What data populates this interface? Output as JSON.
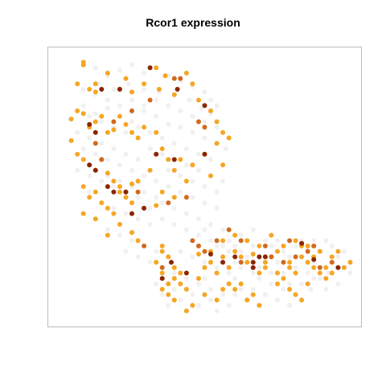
{
  "chart_data": {
    "type": "scatter",
    "title": "Rcor1 expression",
    "xlabel": "",
    "ylabel": "",
    "xlim": [
      0,
      100
    ],
    "ylim": [
      0,
      100
    ],
    "axes_visible": false,
    "grid": false,
    "legend": "none",
    "colors": {
      "background": "#eeeeee",
      "low": "#f5a623",
      "mid": "#d2691e",
      "high": "#8b2500",
      "frame": "#bbbbbb"
    },
    "background_points": [
      [
        14,
        94
      ],
      [
        18,
        91
      ],
      [
        22,
        93
      ],
      [
        26,
        95
      ],
      [
        30,
        92
      ],
      [
        34,
        94
      ],
      [
        38,
        91
      ],
      [
        42,
        89
      ],
      [
        46,
        87
      ],
      [
        50,
        85
      ],
      [
        52,
        82
      ],
      [
        54,
        80
      ],
      [
        15,
        88
      ],
      [
        20,
        86
      ],
      [
        25,
        88
      ],
      [
        30,
        86
      ],
      [
        35,
        85
      ],
      [
        40,
        84
      ],
      [
        45,
        82
      ],
      [
        49,
        79
      ],
      [
        52,
        77
      ],
      [
        10,
        80
      ],
      [
        14,
        77
      ],
      [
        18,
        79
      ],
      [
        22,
        76
      ],
      [
        26,
        74
      ],
      [
        30,
        78
      ],
      [
        34,
        76
      ],
      [
        38,
        73
      ],
      [
        42,
        72
      ],
      [
        46,
        70
      ],
      [
        50,
        68
      ],
      [
        54,
        66
      ],
      [
        57,
        64
      ],
      [
        8,
        70
      ],
      [
        12,
        68
      ],
      [
        16,
        66
      ],
      [
        20,
        64
      ],
      [
        24,
        62
      ],
      [
        28,
        60
      ],
      [
        32,
        64
      ],
      [
        36,
        62
      ],
      [
        40,
        60
      ],
      [
        44,
        58
      ],
      [
        48,
        56
      ],
      [
        52,
        54
      ],
      [
        56,
        52
      ],
      [
        10,
        60
      ],
      [
        14,
        56
      ],
      [
        18,
        54
      ],
      [
        22,
        52
      ],
      [
        26,
        50
      ],
      [
        30,
        48
      ],
      [
        34,
        46
      ],
      [
        38,
        50
      ],
      [
        42,
        48
      ],
      [
        46,
        46
      ],
      [
        50,
        44
      ],
      [
        54,
        42
      ],
      [
        12,
        48
      ],
      [
        16,
        44
      ],
      [
        20,
        42
      ],
      [
        24,
        40
      ],
      [
        28,
        38
      ],
      [
        32,
        36
      ],
      [
        36,
        38
      ],
      [
        40,
        36
      ],
      [
        44,
        34
      ],
      [
        48,
        32
      ],
      [
        52,
        30
      ],
      [
        56,
        28
      ],
      [
        18,
        34
      ],
      [
        22,
        32
      ],
      [
        26,
        30
      ],
      [
        30,
        28
      ],
      [
        34,
        26
      ],
      [
        38,
        24
      ],
      [
        42,
        26
      ],
      [
        46,
        24
      ],
      [
        50,
        22
      ],
      [
        54,
        20
      ],
      [
        58,
        18
      ],
      [
        24,
        26
      ],
      [
        28,
        24
      ],
      [
        32,
        22
      ],
      [
        36,
        20
      ],
      [
        40,
        18
      ],
      [
        44,
        16
      ],
      [
        48,
        14
      ],
      [
        52,
        12
      ],
      [
        56,
        10
      ],
      [
        60,
        16
      ],
      [
        62,
        20
      ],
      [
        64,
        24
      ],
      [
        34,
        14
      ],
      [
        36,
        10
      ],
      [
        38,
        6
      ],
      [
        40,
        12
      ],
      [
        42,
        8
      ],
      [
        44,
        4
      ],
      [
        46,
        10
      ],
      [
        48,
        6
      ],
      [
        50,
        16
      ],
      [
        52,
        8
      ],
      [
        54,
        4
      ],
      [
        58,
        6
      ],
      [
        60,
        28
      ],
      [
        62,
        26
      ],
      [
        64,
        22
      ],
      [
        66,
        18
      ],
      [
        68,
        20
      ],
      [
        70,
        24
      ],
      [
        72,
        28
      ],
      [
        74,
        22
      ],
      [
        76,
        18
      ],
      [
        78,
        14
      ],
      [
        80,
        20
      ],
      [
        60,
        10
      ],
      [
        62,
        12
      ],
      [
        64,
        8
      ],
      [
        66,
        12
      ],
      [
        68,
        6
      ],
      [
        70,
        10
      ],
      [
        72,
        14
      ],
      [
        74,
        8
      ],
      [
        76,
        12
      ],
      [
        78,
        6
      ],
      [
        80,
        10
      ],
      [
        82,
        14
      ],
      [
        84,
        18
      ],
      [
        86,
        22
      ],
      [
        88,
        26
      ],
      [
        90,
        30
      ],
      [
        92,
        28
      ],
      [
        94,
        24
      ],
      [
        96,
        20
      ],
      [
        98,
        22
      ],
      [
        85,
        12
      ],
      [
        88,
        16
      ],
      [
        91,
        18
      ],
      [
        94,
        14
      ],
      [
        96,
        26
      ],
      [
        98,
        18
      ],
      [
        82,
        24
      ],
      [
        84,
        28
      ],
      [
        86,
        30
      ],
      [
        70,
        30
      ],
      [
        66,
        28
      ],
      [
        62,
        32
      ],
      [
        58,
        26
      ],
      [
        56,
        24
      ],
      [
        54,
        28
      ],
      [
        66,
        34
      ],
      [
        68,
        16
      ],
      [
        72,
        18
      ],
      [
        74,
        30
      ],
      [
        76,
        26
      ],
      [
        78,
        24
      ],
      [
        80,
        28
      ],
      [
        82,
        30
      ],
      [
        86,
        16
      ],
      [
        90,
        12
      ],
      [
        92,
        22
      ],
      [
        64,
        30
      ],
      [
        60,
        22
      ],
      [
        58,
        30
      ],
      [
        56,
        34
      ],
      [
        52,
        36
      ],
      [
        50,
        34
      ],
      [
        48,
        38
      ],
      [
        44,
        40
      ],
      [
        40,
        42
      ],
      [
        36,
        44
      ],
      [
        32,
        42
      ],
      [
        28,
        46
      ],
      [
        24,
        48
      ],
      [
        20,
        50
      ],
      [
        16,
        52
      ],
      [
        12,
        54
      ],
      [
        8,
        56
      ],
      [
        10,
        64
      ],
      [
        14,
        62
      ],
      [
        18,
        60
      ],
      [
        22,
        58
      ],
      [
        26,
        56
      ],
      [
        30,
        54
      ],
      [
        34,
        52
      ],
      [
        38,
        56
      ],
      [
        42,
        54
      ],
      [
        46,
        52
      ],
      [
        50,
        50
      ],
      [
        54,
        48
      ],
      [
        44,
        64
      ],
      [
        48,
        62
      ],
      [
        52,
        60
      ],
      [
        56,
        58
      ],
      [
        40,
        66
      ],
      [
        36,
        68
      ],
      [
        32,
        70
      ],
      [
        28,
        72
      ],
      [
        24,
        70
      ],
      [
        20,
        72
      ],
      [
        16,
        74
      ],
      [
        12,
        76
      ],
      [
        8,
        78
      ],
      [
        10,
        86
      ],
      [
        14,
        84
      ],
      [
        18,
        82
      ],
      [
        22,
        80
      ],
      [
        26,
        82
      ],
      [
        30,
        80
      ],
      [
        34,
        82
      ],
      [
        38,
        80
      ],
      [
        42,
        78
      ],
      [
        46,
        76
      ],
      [
        50,
        74
      ],
      [
        54,
        72
      ],
      [
        56,
        70
      ]
    ],
    "expressing_points": [
      [
        10,
        95
      ],
      [
        10,
        96
      ],
      [
        8,
        88
      ],
      [
        12,
        86
      ],
      [
        14,
        85
      ],
      [
        18,
        92
      ],
      [
        22,
        86
      ],
      [
        26,
        85
      ],
      [
        34,
        94
      ],
      [
        37,
        91
      ],
      [
        35,
        86
      ],
      [
        40,
        84
      ],
      [
        46,
        88
      ],
      [
        6,
        75
      ],
      [
        8,
        78
      ],
      [
        10,
        77
      ],
      [
        12,
        72
      ],
      [
        14,
        74
      ],
      [
        16,
        76
      ],
      [
        18,
        70
      ],
      [
        20,
        71
      ],
      [
        22,
        76
      ],
      [
        24,
        73
      ],
      [
        26,
        70
      ],
      [
        28,
        68
      ],
      [
        30,
        72
      ],
      [
        6,
        67
      ],
      [
        8,
        62
      ],
      [
        10,
        60
      ],
      [
        12,
        58
      ],
      [
        14,
        56
      ],
      [
        16,
        60
      ],
      [
        18,
        55
      ],
      [
        20,
        52
      ],
      [
        22,
        50
      ],
      [
        24,
        48
      ],
      [
        26,
        51
      ],
      [
        28,
        52
      ],
      [
        32,
        56
      ],
      [
        10,
        50
      ],
      [
        12,
        46
      ],
      [
        14,
        48
      ],
      [
        16,
        44
      ],
      [
        18,
        42
      ],
      [
        20,
        40
      ],
      [
        22,
        48
      ],
      [
        24,
        46
      ],
      [
        26,
        44
      ],
      [
        30,
        42
      ],
      [
        34,
        43
      ],
      [
        36,
        48
      ],
      [
        40,
        46
      ],
      [
        10,
        40
      ],
      [
        14,
        38
      ],
      [
        18,
        32
      ],
      [
        22,
        36
      ],
      [
        26,
        33
      ],
      [
        28,
        30
      ],
      [
        36,
        28
      ],
      [
        38,
        24
      ],
      [
        40,
        20
      ],
      [
        42,
        18
      ],
      [
        36,
        26
      ],
      [
        34,
        22
      ],
      [
        36,
        18
      ],
      [
        38,
        10
      ],
      [
        40,
        8
      ],
      [
        44,
        12
      ],
      [
        48,
        16
      ],
      [
        50,
        20
      ],
      [
        52,
        22
      ],
      [
        54,
        18
      ],
      [
        48,
        25
      ],
      [
        52,
        26
      ],
      [
        56,
        24
      ],
      [
        58,
        20
      ],
      [
        60,
        26
      ],
      [
        62,
        24
      ],
      [
        64,
        22
      ],
      [
        66,
        25
      ],
      [
        68,
        18
      ],
      [
        70,
        20
      ],
      [
        72,
        24
      ],
      [
        74,
        18
      ],
      [
        76,
        16
      ],
      [
        78,
        20
      ],
      [
        80,
        18
      ],
      [
        82,
        24
      ],
      [
        84,
        22
      ],
      [
        86,
        20
      ],
      [
        88,
        18
      ],
      [
        90,
        16
      ],
      [
        60,
        12
      ],
      [
        62,
        14
      ],
      [
        64,
        8
      ],
      [
        66,
        10
      ],
      [
        68,
        6
      ],
      [
        74,
        14
      ],
      [
        78,
        12
      ],
      [
        80,
        10
      ],
      [
        82,
        8
      ],
      [
        84,
        14
      ],
      [
        56,
        30
      ],
      [
        60,
        32
      ],
      [
        64,
        30
      ],
      [
        68,
        28
      ],
      [
        72,
        32
      ],
      [
        76,
        28
      ],
      [
        80,
        30
      ],
      [
        84,
        28
      ],
      [
        88,
        26
      ],
      [
        92,
        24
      ],
      [
        42,
        60
      ],
      [
        46,
        58
      ],
      [
        50,
        62
      ],
      [
        54,
        66
      ],
      [
        56,
        58
      ],
      [
        52,
        54
      ],
      [
        44,
        52
      ],
      [
        40,
        56
      ],
      [
        38,
        60
      ],
      [
        36,
        64
      ],
      [
        14,
        88
      ],
      [
        24,
        90
      ],
      [
        30,
        88
      ],
      [
        44,
        92
      ],
      [
        48,
        82
      ],
      [
        52,
        78
      ],
      [
        54,
        74
      ],
      [
        56,
        70
      ],
      [
        58,
        68
      ],
      [
        34,
        70
      ],
      [
        94,
        26
      ],
      [
        96,
        20
      ],
      [
        98,
        22
      ],
      [
        92,
        18
      ],
      [
        90,
        20
      ],
      [
        86,
        24
      ],
      [
        82,
        28
      ],
      [
        78,
        22
      ],
      [
        74,
        26
      ],
      [
        70,
        22
      ],
      [
        58,
        14
      ],
      [
        56,
        12
      ],
      [
        54,
        8
      ],
      [
        50,
        10
      ],
      [
        46,
        6
      ],
      [
        44,
        4
      ],
      [
        42,
        14
      ],
      [
        40,
        16
      ],
      [
        38,
        14
      ],
      [
        36,
        12
      ]
    ],
    "high_points": [
      [
        16,
        86
      ],
      [
        22,
        86
      ],
      [
        32,
        94
      ],
      [
        41,
        86
      ],
      [
        12,
        73
      ],
      [
        14,
        70
      ],
      [
        18,
        50
      ],
      [
        20,
        48
      ],
      [
        24,
        48
      ],
      [
        50,
        80
      ],
      [
        39,
        22
      ],
      [
        52,
        25
      ],
      [
        66,
        22
      ],
      [
        68,
        24
      ],
      [
        82,
        29
      ],
      [
        86,
        23
      ],
      [
        12,
        58
      ],
      [
        14,
        56
      ],
      [
        66,
        20
      ],
      [
        70,
        24
      ],
      [
        44,
        18
      ],
      [
        36,
        16
      ],
      [
        30,
        42
      ],
      [
        26,
        40
      ],
      [
        94,
        20
      ],
      [
        40,
        60
      ],
      [
        34,
        62
      ],
      [
        50,
        62
      ],
      [
        56,
        22
      ],
      [
        60,
        24
      ]
    ],
    "mid_points": [
      [
        40,
        90
      ],
      [
        42,
        90
      ],
      [
        48,
        74
      ],
      [
        50,
        72
      ],
      [
        16,
        60
      ],
      [
        28,
        48
      ],
      [
        38,
        44
      ],
      [
        44,
        46
      ],
      [
        62,
        22
      ],
      [
        84,
        26
      ],
      [
        72,
        24
      ],
      [
        76,
        22
      ],
      [
        80,
        24
      ],
      [
        88,
        20
      ],
      [
        36,
        20
      ],
      [
        30,
        28
      ],
      [
        14,
        66
      ],
      [
        20,
        74
      ],
      [
        26,
        78
      ],
      [
        32,
        82
      ],
      [
        46,
        30
      ],
      [
        48,
        28
      ],
      [
        50,
        26
      ],
      [
        54,
        30
      ],
      [
        58,
        34
      ],
      [
        62,
        30
      ],
      [
        70,
        28
      ],
      [
        78,
        30
      ],
      [
        86,
        28
      ],
      [
        92,
        22
      ]
    ]
  }
}
